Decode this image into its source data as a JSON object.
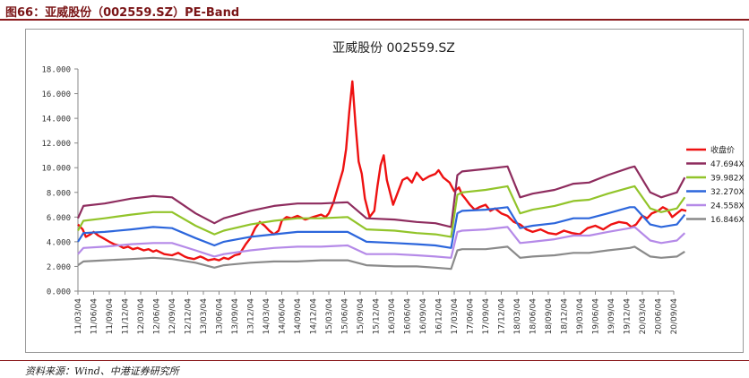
{
  "figure_caption": "图66：亚威股份（002559.SZ）PE-Band",
  "source_note": "资料来源：Wind、中港证券研究所",
  "chart_data": {
    "type": "line",
    "title": "亚威股份 002559.SZ",
    "xlabel": "",
    "ylabel": "",
    "ylim": [
      0,
      18
    ],
    "yticks": [
      "0.000",
      "2.000",
      "4.000",
      "6.000",
      "8.000",
      "10.000",
      "12.000",
      "14.000",
      "16.000",
      "18.000"
    ],
    "xticks": [
      "11/03/04",
      "11/06/04",
      "11/09/04",
      "11/12/04",
      "12/03/04",
      "12/06/04",
      "12/09/04",
      "12/12/04",
      "13/03/04",
      "13/06/04",
      "13/09/04",
      "13/12/04",
      "14/03/04",
      "14/06/04",
      "14/09/04",
      "14/12/04",
      "15/03/04",
      "15/06/04",
      "15/09/04",
      "15/12/04",
      "16/03/04",
      "16/06/04",
      "16/09/04",
      "16/12/04",
      "17/03/04",
      "17/06/04",
      "17/09/04",
      "17/12/04",
      "18/03/04",
      "18/06/04",
      "18/09/04",
      "18/12/04",
      "19/03/04",
      "19/06/04",
      "19/09/04",
      "19/12/04",
      "20/03/04",
      "20/06/04",
      "20/09/04"
    ],
    "legend_position": "right",
    "grid": false,
    "series": [
      {
        "name": "收盘价",
        "color": "#ee1111",
        "points": [
          [
            0,
            5.4
          ],
          [
            0.3,
            5.0
          ],
          [
            0.5,
            4.4
          ],
          [
            0.8,
            4.6
          ],
          [
            1.0,
            4.8
          ],
          [
            1.3,
            4.5
          ],
          [
            1.6,
            4.3
          ],
          [
            2.0,
            4.0
          ],
          [
            2.3,
            3.8
          ],
          [
            2.6,
            3.7
          ],
          [
            2.9,
            3.5
          ],
          [
            3.2,
            3.6
          ],
          [
            3.5,
            3.4
          ],
          [
            3.8,
            3.5
          ],
          [
            4.2,
            3.3
          ],
          [
            4.5,
            3.4
          ],
          [
            4.8,
            3.2
          ],
          [
            5.0,
            3.3
          ],
          [
            5.5,
            3.0
          ],
          [
            6.0,
            2.9
          ],
          [
            6.4,
            3.1
          ],
          [
            6.8,
            2.8
          ],
          [
            7.0,
            2.7
          ],
          [
            7.4,
            2.6
          ],
          [
            7.8,
            2.8
          ],
          [
            8.0,
            2.7
          ],
          [
            8.3,
            2.5
          ],
          [
            8.7,
            2.6
          ],
          [
            9.0,
            2.5
          ],
          [
            9.3,
            2.7
          ],
          [
            9.6,
            2.6
          ],
          [
            10.0,
            2.9
          ],
          [
            10.3,
            3.0
          ],
          [
            10.7,
            3.8
          ],
          [
            11.0,
            4.3
          ],
          [
            11.3,
            5.1
          ],
          [
            11.6,
            5.6
          ],
          [
            11.9,
            5.3
          ],
          [
            12.2,
            4.9
          ],
          [
            12.5,
            4.6
          ],
          [
            12.8,
            4.9
          ],
          [
            13.0,
            5.7
          ],
          [
            13.3,
            6.0
          ],
          [
            13.6,
            5.9
          ],
          [
            14.0,
            6.1
          ],
          [
            14.5,
            5.8
          ],
          [
            15.0,
            6.0
          ],
          [
            15.5,
            6.2
          ],
          [
            15.8,
            6.0
          ],
          [
            16.0,
            6.3
          ],
          [
            16.3,
            7.2
          ],
          [
            16.6,
            8.5
          ],
          [
            16.9,
            9.8
          ],
          [
            17.1,
            11.5
          ],
          [
            17.3,
            14.5
          ],
          [
            17.5,
            17.0
          ],
          [
            17.7,
            13.5
          ],
          [
            17.9,
            10.5
          ],
          [
            18.1,
            9.5
          ],
          [
            18.3,
            7.5
          ],
          [
            18.6,
            6.0
          ],
          [
            18.9,
            6.5
          ],
          [
            19.1,
            8.5
          ],
          [
            19.3,
            10.2
          ],
          [
            19.5,
            11.0
          ],
          [
            19.7,
            9.0
          ],
          [
            19.9,
            8.0
          ],
          [
            20.1,
            7.0
          ],
          [
            20.4,
            8.0
          ],
          [
            20.7,
            9.0
          ],
          [
            21.0,
            9.2
          ],
          [
            21.3,
            8.8
          ],
          [
            21.6,
            9.6
          ],
          [
            22.0,
            9.0
          ],
          [
            22.4,
            9.3
          ],
          [
            22.8,
            9.5
          ],
          [
            23.0,
            9.8
          ],
          [
            23.3,
            9.2
          ],
          [
            23.7,
            8.8
          ],
          [
            24.0,
            8.1
          ],
          [
            24.3,
            8.4
          ],
          [
            24.5,
            7.8
          ],
          [
            24.7,
            7.5
          ],
          [
            25.0,
            7.0
          ],
          [
            25.3,
            6.6
          ],
          [
            25.6,
            6.8
          ],
          [
            26.0,
            7.0
          ],
          [
            26.3,
            6.5
          ],
          [
            26.6,
            6.7
          ],
          [
            27.0,
            6.3
          ],
          [
            27.4,
            6.1
          ],
          [
            27.8,
            5.6
          ],
          [
            28.2,
            5.4
          ],
          [
            28.6,
            5.0
          ],
          [
            29.0,
            4.8
          ],
          [
            29.5,
            5.0
          ],
          [
            30.0,
            4.7
          ],
          [
            30.5,
            4.6
          ],
          [
            31.0,
            4.9
          ],
          [
            31.5,
            4.7
          ],
          [
            32.0,
            4.6
          ],
          [
            32.5,
            5.1
          ],
          [
            33.0,
            5.3
          ],
          [
            33.5,
            5.0
          ],
          [
            34.0,
            5.4
          ],
          [
            34.5,
            5.6
          ],
          [
            35.0,
            5.5
          ],
          [
            35.3,
            5.2
          ],
          [
            35.6,
            5.4
          ],
          [
            36.0,
            6.1
          ],
          [
            36.3,
            5.9
          ],
          [
            36.6,
            6.3
          ],
          [
            37.0,
            6.5
          ],
          [
            37.3,
            6.8
          ],
          [
            37.6,
            6.6
          ],
          [
            37.9,
            6.0
          ],
          [
            38.2,
            6.3
          ],
          [
            38.5,
            6.6
          ],
          [
            38.8,
            6.5
          ]
        ]
      },
      {
        "name": "47.694X",
        "color": "#8e2c5e",
        "points": [
          [
            0,
            5.9
          ],
          [
            0.35,
            6.9
          ],
          [
            1.7,
            7.1
          ],
          [
            3.4,
            7.5
          ],
          [
            4.8,
            7.7
          ],
          [
            6.0,
            7.6
          ],
          [
            7.5,
            6.3
          ],
          [
            8.7,
            5.5
          ],
          [
            9.3,
            5.9
          ],
          [
            11.0,
            6.5
          ],
          [
            12.5,
            6.9
          ],
          [
            14.0,
            7.1
          ],
          [
            15.5,
            7.1
          ],
          [
            17.2,
            7.2
          ],
          [
            18.4,
            5.9
          ],
          [
            20.2,
            5.8
          ],
          [
            21.6,
            5.6
          ],
          [
            22.8,
            5.5
          ],
          [
            23.8,
            5.2
          ],
          [
            24.2,
            9.4
          ],
          [
            24.5,
            9.7
          ],
          [
            26.0,
            9.9
          ],
          [
            27.4,
            10.1
          ],
          [
            28.2,
            7.6
          ],
          [
            29.0,
            7.9
          ],
          [
            30.4,
            8.2
          ],
          [
            31.6,
            8.7
          ],
          [
            32.6,
            8.8
          ],
          [
            33.8,
            9.4
          ],
          [
            35.2,
            10.0
          ],
          [
            35.5,
            10.1
          ],
          [
            36.5,
            8.0
          ],
          [
            37.2,
            7.6
          ],
          [
            38.2,
            8.0
          ],
          [
            38.7,
            9.2
          ]
        ]
      },
      {
        "name": "39.982X",
        "color": "#92c42a",
        "points": [
          [
            0,
            4.9
          ],
          [
            0.35,
            5.7
          ],
          [
            1.7,
            5.9
          ],
          [
            3.4,
            6.2
          ],
          [
            4.8,
            6.4
          ],
          [
            6.0,
            6.4
          ],
          [
            7.5,
            5.3
          ],
          [
            8.7,
            4.6
          ],
          [
            9.3,
            4.9
          ],
          [
            11.0,
            5.4
          ],
          [
            12.5,
            5.7
          ],
          [
            14.0,
            5.9
          ],
          [
            15.5,
            5.9
          ],
          [
            17.2,
            6.0
          ],
          [
            18.4,
            5.0
          ],
          [
            20.2,
            4.9
          ],
          [
            21.6,
            4.7
          ],
          [
            22.8,
            4.6
          ],
          [
            23.8,
            4.4
          ],
          [
            24.2,
            7.8
          ],
          [
            24.5,
            8.0
          ],
          [
            26.0,
            8.2
          ],
          [
            27.4,
            8.5
          ],
          [
            28.2,
            6.3
          ],
          [
            29.0,
            6.6
          ],
          [
            30.4,
            6.9
          ],
          [
            31.6,
            7.3
          ],
          [
            32.6,
            7.4
          ],
          [
            33.8,
            7.9
          ],
          [
            35.2,
            8.4
          ],
          [
            35.5,
            8.5
          ],
          [
            36.5,
            6.7
          ],
          [
            37.2,
            6.4
          ],
          [
            38.2,
            6.7
          ],
          [
            38.7,
            7.6
          ]
        ]
      },
      {
        "name": "32.270X",
        "color": "#2c66dc",
        "points": [
          [
            0,
            4.0
          ],
          [
            0.35,
            4.7
          ],
          [
            1.7,
            4.8
          ],
          [
            3.4,
            5.0
          ],
          [
            4.8,
            5.2
          ],
          [
            6.0,
            5.1
          ],
          [
            7.5,
            4.3
          ],
          [
            8.7,
            3.7
          ],
          [
            9.3,
            4.0
          ],
          [
            11.0,
            4.4
          ],
          [
            12.5,
            4.6
          ],
          [
            14.0,
            4.8
          ],
          [
            15.5,
            4.8
          ],
          [
            17.2,
            4.8
          ],
          [
            18.4,
            4.0
          ],
          [
            20.2,
            3.9
          ],
          [
            21.6,
            3.8
          ],
          [
            22.8,
            3.7
          ],
          [
            23.8,
            3.5
          ],
          [
            24.2,
            6.3
          ],
          [
            24.5,
            6.5
          ],
          [
            26.0,
            6.6
          ],
          [
            27.4,
            6.8
          ],
          [
            28.2,
            5.1
          ],
          [
            29.0,
            5.3
          ],
          [
            30.4,
            5.5
          ],
          [
            31.6,
            5.9
          ],
          [
            32.6,
            5.9
          ],
          [
            33.8,
            6.3
          ],
          [
            35.2,
            6.8
          ],
          [
            35.5,
            6.8
          ],
          [
            36.5,
            5.4
          ],
          [
            37.2,
            5.2
          ],
          [
            38.2,
            5.4
          ],
          [
            38.7,
            6.2
          ]
        ]
      },
      {
        "name": "24.558X",
        "color": "#b58ae8",
        "points": [
          [
            0,
            3.0
          ],
          [
            0.35,
            3.5
          ],
          [
            1.7,
            3.6
          ],
          [
            3.4,
            3.8
          ],
          [
            4.8,
            3.9
          ],
          [
            6.0,
            3.9
          ],
          [
            7.5,
            3.3
          ],
          [
            8.7,
            2.8
          ],
          [
            9.3,
            3.0
          ],
          [
            11.0,
            3.3
          ],
          [
            12.5,
            3.5
          ],
          [
            14.0,
            3.6
          ],
          [
            15.5,
            3.6
          ],
          [
            17.2,
            3.7
          ],
          [
            18.4,
            3.0
          ],
          [
            20.2,
            3.0
          ],
          [
            21.6,
            2.9
          ],
          [
            22.8,
            2.8
          ],
          [
            23.8,
            2.7
          ],
          [
            24.2,
            4.8
          ],
          [
            24.5,
            4.9
          ],
          [
            26.0,
            5.0
          ],
          [
            27.4,
            5.2
          ],
          [
            28.2,
            3.9
          ],
          [
            29.0,
            4.0
          ],
          [
            30.4,
            4.2
          ],
          [
            31.6,
            4.5
          ],
          [
            32.6,
            4.5
          ],
          [
            33.8,
            4.8
          ],
          [
            35.2,
            5.1
          ],
          [
            35.5,
            5.2
          ],
          [
            36.5,
            4.1
          ],
          [
            37.2,
            3.9
          ],
          [
            38.2,
            4.1
          ],
          [
            38.7,
            4.7
          ]
        ]
      },
      {
        "name": "16.846X",
        "color": "#8a8a8a",
        "points": [
          [
            0,
            2.1
          ],
          [
            0.35,
            2.4
          ],
          [
            1.7,
            2.5
          ],
          [
            3.4,
            2.6
          ],
          [
            4.8,
            2.7
          ],
          [
            6.0,
            2.6
          ],
          [
            7.5,
            2.3
          ],
          [
            8.7,
            1.9
          ],
          [
            9.3,
            2.1
          ],
          [
            11.0,
            2.3
          ],
          [
            12.5,
            2.4
          ],
          [
            14.0,
            2.4
          ],
          [
            15.5,
            2.5
          ],
          [
            17.2,
            2.5
          ],
          [
            18.4,
            2.1
          ],
          [
            20.2,
            2.0
          ],
          [
            21.6,
            2.0
          ],
          [
            22.8,
            1.9
          ],
          [
            23.8,
            1.8
          ],
          [
            24.2,
            3.3
          ],
          [
            24.5,
            3.4
          ],
          [
            26.0,
            3.4
          ],
          [
            27.4,
            3.6
          ],
          [
            28.2,
            2.7
          ],
          [
            29.0,
            2.8
          ],
          [
            30.4,
            2.9
          ],
          [
            31.6,
            3.1
          ],
          [
            32.6,
            3.1
          ],
          [
            33.8,
            3.3
          ],
          [
            35.2,
            3.5
          ],
          [
            35.5,
            3.6
          ],
          [
            36.5,
            2.8
          ],
          [
            37.2,
            2.7
          ],
          [
            38.2,
            2.8
          ],
          [
            38.7,
            3.2
          ]
        ]
      }
    ]
  }
}
